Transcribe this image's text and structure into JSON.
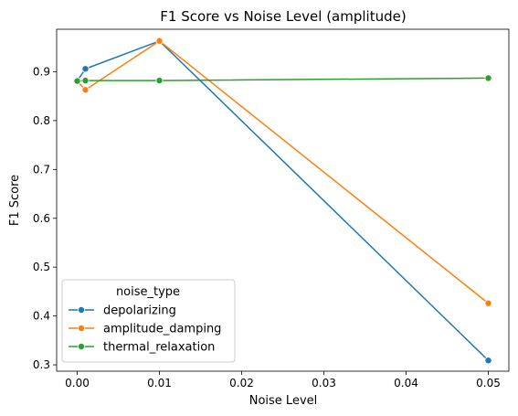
{
  "chart_data": {
    "type": "line",
    "title": "F1 Score vs Noise Level (amplitude)",
    "xlabel": "Noise Level",
    "ylabel": "F1 Score",
    "xlim": [
      -0.0025,
      0.0525
    ],
    "ylim": [
      0.287,
      0.987
    ],
    "xticks": [
      0.0,
      0.01,
      0.02,
      0.03,
      0.04,
      0.05
    ],
    "xtick_labels": [
      "0.00",
      "0.01",
      "0.02",
      "0.03",
      "0.04",
      "0.05"
    ],
    "yticks": [
      0.3,
      0.4,
      0.5,
      0.6,
      0.7,
      0.8,
      0.9
    ],
    "ytick_labels": [
      "0.3",
      "0.4",
      "0.5",
      "0.6",
      "0.7",
      "0.8",
      "0.9"
    ],
    "grid": false,
    "legend": {
      "title": "noise_type",
      "placement": "lower-left"
    },
    "series": [
      {
        "name": "depolarizing",
        "color": "#1f77b4",
        "marker": "circle",
        "x": [
          0.0,
          0.001,
          0.01,
          0.05
        ],
        "y": [
          0.881,
          0.906,
          0.963,
          0.309
        ]
      },
      {
        "name": "amplitude_damping",
        "color": "#ff7f0e",
        "marker": "circle",
        "x": [
          0.0,
          0.001,
          0.01,
          0.05
        ],
        "y": [
          0.881,
          0.863,
          0.963,
          0.426
        ]
      },
      {
        "name": "thermal_relaxation",
        "color": "#2ca02c",
        "marker": "circle",
        "x": [
          0.0,
          0.001,
          0.01,
          0.05
        ],
        "y": [
          0.881,
          0.882,
          0.882,
          0.887
        ]
      }
    ]
  }
}
